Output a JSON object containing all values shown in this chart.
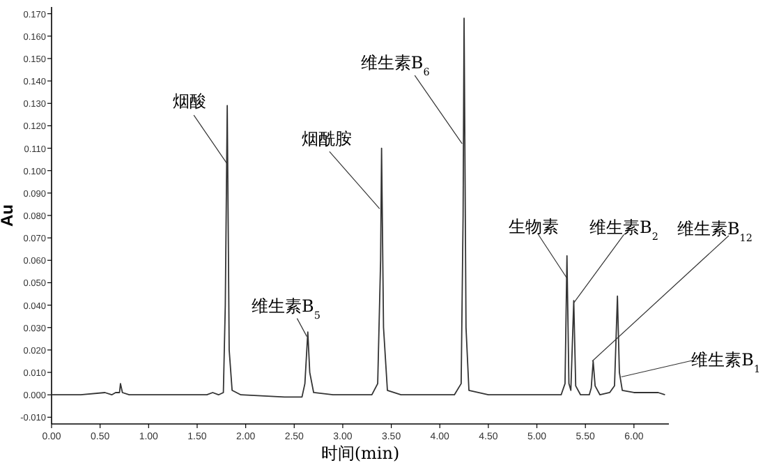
{
  "chart_data": {
    "type": "line",
    "xlabel": "时间(min)",
    "ylabel": "Au",
    "xlim": [
      0,
      6.36
    ],
    "ylim": [
      -0.013,
      0.173
    ],
    "xticks": [
      {
        "value": 0,
        "label": "0.00"
      },
      {
        "value": 0.5,
        "label": "0.50"
      },
      {
        "value": 1,
        "label": "1.00"
      },
      {
        "value": 1.5,
        "label": "1.50"
      },
      {
        "value": 2,
        "label": "2.00"
      },
      {
        "value": 2.5,
        "label": "2.50"
      },
      {
        "value": 3,
        "label": "3.00"
      },
      {
        "value": 3.5,
        "label": "3.50"
      },
      {
        "value": 4,
        "label": "4.00"
      },
      {
        "value": 4.5,
        "label": "4.50"
      },
      {
        "value": 5,
        "label": "5.00"
      },
      {
        "value": 5.5,
        "label": "5.50"
      },
      {
        "value": 6,
        "label": "6.00"
      }
    ],
    "yticks": [
      {
        "value": -0.01,
        "label": "-0.010"
      },
      {
        "value": 0,
        "label": "0.000"
      },
      {
        "value": 0.01,
        "label": "0.010"
      },
      {
        "value": 0.02,
        "label": "0.020"
      },
      {
        "value": 0.03,
        "label": "0.030"
      },
      {
        "value": 0.04,
        "label": "0.040"
      },
      {
        "value": 0.05,
        "label": "0.050"
      },
      {
        "value": 0.06,
        "label": "0.060"
      },
      {
        "value": 0.07,
        "label": "0.070"
      },
      {
        "value": 0.08,
        "label": "0.080"
      },
      {
        "value": 0.09,
        "label": "0.090"
      },
      {
        "value": 0.1,
        "label": "0.100"
      },
      {
        "value": 0.11,
        "label": "0.110"
      },
      {
        "value": 0.12,
        "label": "0.120"
      },
      {
        "value": 0.13,
        "label": "0.130"
      },
      {
        "value": 0.14,
        "label": "0.140"
      },
      {
        "value": 0.15,
        "label": "0.150"
      },
      {
        "value": 0.16,
        "label": "0.160"
      },
      {
        "value": 0.17,
        "label": "0.170"
      }
    ],
    "grid": false,
    "marker": "none",
    "line_style": "solid",
    "series": [
      {
        "color": "#333333",
        "x": [
          0,
          0.3,
          0.55,
          0.62,
          0.66,
          0.7,
          0.71,
          0.73,
          0.8,
          1.2,
          1.6,
          1.66,
          1.72,
          1.77,
          1.79,
          1.81,
          1.83,
          1.86,
          1.95,
          2.4,
          2.58,
          2.61,
          2.64,
          2.66,
          2.7,
          2.9,
          3.3,
          3.36,
          3.39,
          3.4,
          3.42,
          3.46,
          3.6,
          4.15,
          4.22,
          4.24,
          4.25,
          4.27,
          4.3,
          4.5,
          5.25,
          5.29,
          5.31,
          5.33,
          5.35,
          5.38,
          5.4,
          5.45,
          5.54,
          5.56,
          5.58,
          5.6,
          5.65,
          5.75,
          5.8,
          5.83,
          5.85,
          5.88,
          6,
          6.25,
          6.32
        ],
        "values": [
          0,
          0,
          0.001,
          0,
          0.001,
          0.001,
          0.005,
          0.001,
          0,
          0,
          0,
          0.001,
          0,
          0.001,
          0.04,
          0.129,
          0.02,
          0.002,
          0,
          -0.001,
          -0.001,
          0.005,
          0.028,
          0.01,
          0.001,
          0,
          0,
          0.005,
          0.06,
          0.11,
          0.03,
          0.002,
          0,
          0,
          0.005,
          0.08,
          0.168,
          0.03,
          0.002,
          0,
          0,
          0.005,
          0.062,
          0.005,
          0.002,
          0.042,
          0.004,
          0,
          0,
          0.003,
          0.015,
          0.004,
          0,
          0.001,
          0.004,
          0.044,
          0.01,
          0.002,
          0.001,
          0.001,
          0
        ]
      }
    ],
    "annotations": [
      {
        "text": "烟酸",
        "x": 1.81,
        "y": 0.103
      },
      {
        "text": "维生素B$_{5}$",
        "x": 2.63,
        "y": 0.026
      },
      {
        "text": "烟酰胺",
        "x": 3.38,
        "y": 0.083
      },
      {
        "text": "维生素B$_{6}$",
        "x": 4.23,
        "y": 0.112
      },
      {
        "text": "生物素",
        "x": 5.31,
        "y": 0.052
      },
      {
        "text": "维生素B$_{2}$",
        "x": 5.38,
        "y": 0.041
      },
      {
        "text": "维生素B$_{12}$",
        "x": 5.57,
        "y": 0.015
      },
      {
        "text": "维生素B$_{1}$",
        "x": 5.87,
        "y": 0.008
      }
    ]
  }
}
